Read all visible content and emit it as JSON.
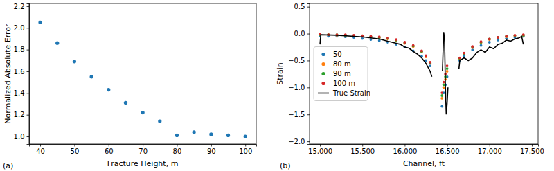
{
  "chart_data": [
    {
      "type": "scatter",
      "x_label": "Fracture Height, m",
      "y_label": "Normalized Absolute Error",
      "annotations": [
        "(a)"
      ],
      "x": [
        40,
        45,
        50,
        55,
        60,
        65,
        70,
        75,
        80,
        85,
        90,
        95,
        100
      ],
      "values": [
        2.05,
        1.86,
        1.69,
        1.55,
        1.43,
        1.31,
        1.22,
        1.14,
        1.01,
        1.04,
        1.02,
        1.01,
        1.0
      ],
      "color": "#1f77b4",
      "marker": "circle",
      "xlim": [
        36.75,
        103.2
      ],
      "xticks": [
        40,
        50,
        60,
        70,
        80,
        90,
        100
      ],
      "ylim": [
        0.93,
        2.225
      ],
      "yticks": [
        {
          "value": 1.0,
          "label": "1.0"
        },
        1.2,
        1.4,
        1.6,
        1.8,
        {
          "value": 2.0,
          "label": "2.0"
        },
        2.2
      ]
    },
    {
      "type": "scatter",
      "x_label": "Channel, ft",
      "y_label": "Strain",
      "annotations": [
        "(b)"
      ],
      "legend": "center left",
      "x": [
        15000,
        15100,
        15200,
        15300,
        15400,
        15500,
        15600,
        15700,
        15800,
        15900,
        16000,
        16100,
        16200,
        16250,
        16300,
        16440,
        16460,
        16480,
        16500,
        16650,
        16700,
        16800,
        16900,
        17000,
        17100,
        17200,
        17300,
        17400
      ],
      "series": [
        {
          "name": "50",
          "color": "#1f77b4",
          "type": "scatter",
          "marker": "circle",
          "values": [
            -0.04,
            -0.05,
            -0.05,
            -0.06,
            -0.07,
            -0.09,
            -0.11,
            -0.13,
            -0.16,
            -0.2,
            -0.25,
            -0.32,
            -0.42,
            -0.5,
            -0.6,
            -1.35,
            -1.1,
            -0.95,
            -0.8,
            -0.5,
            -0.42,
            -0.3,
            -0.22,
            -0.16,
            -0.12,
            -0.09,
            -0.07,
            -0.05
          ]
        },
        {
          "name": "80 m",
          "color": "#ff7f0e",
          "type": "scatter",
          "marker": "circle",
          "values": [
            -0.02,
            -0.02,
            -0.03,
            -0.03,
            -0.04,
            -0.05,
            -0.06,
            -0.08,
            -0.1,
            -0.13,
            -0.18,
            -0.24,
            -0.34,
            -0.43,
            -0.55,
            -1.2,
            -1.0,
            -0.85,
            -0.7,
            -0.47,
            -0.38,
            -0.26,
            -0.17,
            -0.11,
            -0.08,
            -0.06,
            -0.04,
            -0.03
          ]
        },
        {
          "name": "90 m",
          "color": "#2ca02c",
          "type": "scatter",
          "marker": "circle",
          "values": [
            -0.02,
            -0.02,
            -0.02,
            -0.03,
            -0.04,
            -0.04,
            -0.05,
            -0.07,
            -0.09,
            -0.12,
            -0.17,
            -0.23,
            -0.33,
            -0.42,
            -0.54,
            -1.15,
            -0.95,
            -0.8,
            -0.65,
            -0.46,
            -0.37,
            -0.25,
            -0.16,
            -0.1,
            -0.07,
            -0.05,
            -0.04,
            -0.03
          ]
        },
        {
          "name": "100 m",
          "color": "#d62728",
          "type": "scatter",
          "marker": "circle",
          "values": [
            -0.01,
            -0.02,
            -0.02,
            -0.02,
            -0.03,
            -0.04,
            -0.05,
            -0.06,
            -0.08,
            -0.11,
            -0.16,
            -0.22,
            -0.32,
            -0.41,
            -0.53,
            -1.1,
            -0.9,
            -0.75,
            -0.6,
            -0.45,
            -0.36,
            -0.24,
            -0.15,
            -0.1,
            -0.07,
            -0.05,
            -0.03,
            -0.02
          ]
        },
        {
          "name": "True Strain",
          "color": "#000000",
          "type": "line",
          "line_style": "solid",
          "x": [
            15000,
            15010,
            15200,
            15400,
            15500,
            15600,
            15700,
            15800,
            15900,
            15950,
            16000,
            16050,
            16100,
            16150,
            16200,
            16250,
            16300,
            16320,
            16380,
            16445,
            16460,
            16470,
            16480,
            16490,
            16500,
            16510,
            16580,
            16640,
            16650,
            16700,
            16750,
            16800,
            16850,
            16900,
            16950,
            17000,
            17050,
            17100,
            17150,
            17200,
            17250,
            17300,
            17350,
            17380,
            17400
          ],
          "values": [
            -0.2,
            -0.02,
            -0.03,
            -0.05,
            -0.06,
            -0.08,
            -0.1,
            -0.14,
            -0.18,
            -0.2,
            -0.25,
            -0.27,
            -0.33,
            -0.38,
            -0.45,
            -0.55,
            -0.7,
            -0.8,
            null,
            -0.7,
            0.03,
            -0.1,
            -1.0,
            -1.5,
            -1.3,
            -1.0,
            null,
            -0.65,
            -0.5,
            -0.45,
            -0.5,
            -0.45,
            -0.35,
            -0.3,
            -0.35,
            -0.25,
            -0.28,
            -0.2,
            -0.18,
            -0.12,
            -0.14,
            -0.1,
            -0.08,
            -0.05,
            -0.2
          ]
        }
      ],
      "xlim": [
        14877,
        17574
      ],
      "xticks": [
        {
          "value": 15000,
          "label": "15,000"
        },
        {
          "value": 15500,
          "label": "15,500"
        },
        {
          "value": 16000,
          "label": "16,000"
        },
        {
          "value": 16500,
          "label": "16,500"
        },
        {
          "value": 17000,
          "label": "17,000"
        },
        {
          "value": 17500,
          "label": "17,500"
        }
      ],
      "ylim": [
        -2.05,
        0.56
      ],
      "yticks": [
        0.5,
        {
          "value": 0.0,
          "label": "0.0"
        },
        {
          "value": -0.5,
          "label": "−0.5"
        },
        {
          "value": -1.0,
          "label": "−1.0"
        },
        {
          "value": -1.5,
          "label": "−1.5"
        },
        {
          "value": -2.0,
          "label": "−2.0"
        }
      ]
    }
  ]
}
